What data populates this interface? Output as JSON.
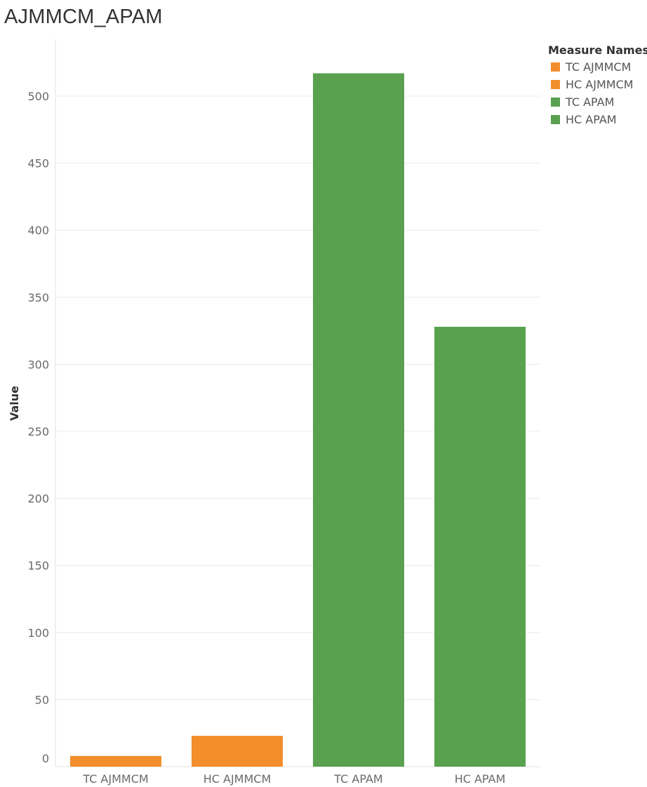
{
  "title": "AJMMCM_APAM",
  "legend": {
    "title": "Measure Names",
    "items": [
      {
        "label": "TC AJMMCM",
        "color": "#F28E2B"
      },
      {
        "label": "HC AJMMCM",
        "color": "#F28E2B"
      },
      {
        "label": "TC APAM",
        "color": "#59A14F"
      },
      {
        "label": "HC APAM",
        "color": "#59A14F"
      }
    ]
  },
  "chart_data": {
    "type": "bar",
    "title": "AJMMCM_APAM",
    "xlabel": "",
    "ylabel": "Value",
    "categories": [
      "TC AJMMCM",
      "HC AJMMCM",
      "TC APAM",
      "HC APAM"
    ],
    "values": [
      8,
      23,
      517,
      328
    ],
    "colors": [
      "#F28E2B",
      "#F28E2B",
      "#59A14F",
      "#59A14F"
    ],
    "ylim": [
      0,
      540
    ],
    "yticks": [
      0,
      50,
      100,
      150,
      200,
      250,
      300,
      350,
      400,
      450,
      500
    ],
    "grid": true,
    "legend_position": "top-right"
  }
}
